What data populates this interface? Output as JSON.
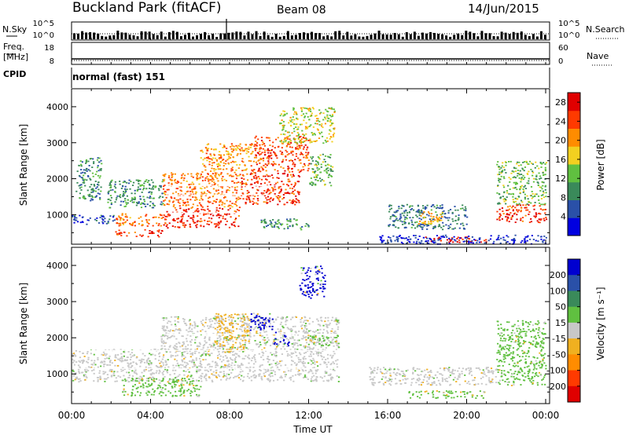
{
  "header": {
    "station": "Buckland Park (fitACF)",
    "beam": "Beam 08",
    "date": "14/Jun/2015"
  },
  "status_panels": {
    "nsky_label": "N.Sky",
    "nsearch_label": "N.Search",
    "freq_label_1": "Freq.",
    "freq_label_2": "[MHz]",
    "nave_label": "Nave",
    "cpid_label": "CPID",
    "cpid_value": "normal (fast) 151",
    "noise_ticks": [
      "10^5",
      "10^0"
    ],
    "freq_ticks": [
      "18",
      "8"
    ],
    "nave_ticks": [
      "60",
      "0"
    ]
  },
  "chart_data": [
    {
      "type": "heatmap",
      "panel": "power",
      "ylabel": "Slant Range [km]",
      "xlabel": "",
      "ylim": [
        180,
        4500
      ],
      "xlim": [
        0,
        24
      ],
      "x_ticks": [
        "00:00",
        "04:00",
        "08:00",
        "12:00",
        "16:00",
        "20:00",
        "00:00"
      ],
      "y_ticks": [
        1000,
        2000,
        3000,
        4000
      ],
      "colorbar": {
        "label": "Power [dB]",
        "ticks": [
          4,
          8,
          12,
          16,
          20,
          24,
          28
        ],
        "range": [
          0,
          30
        ],
        "colors": [
          "#0000e0",
          "#2a50a8",
          "#3a8a5a",
          "#60c040",
          "#f2d020",
          "#ff8c00",
          "#ff3a00",
          "#e00000"
        ]
      },
      "regions": [
        {
          "t": [
            0.0,
            2.2
          ],
          "r": [
            750,
            1000
          ],
          "level": 5
        },
        {
          "t": [
            0.2,
            1.5
          ],
          "r": [
            1400,
            2600
          ],
          "level": 9
        },
        {
          "t": [
            2.2,
            4.6
          ],
          "r": [
            400,
            600
          ],
          "level": 26
        },
        {
          "t": [
            2.2,
            4.6
          ],
          "r": [
            700,
            1050
          ],
          "level": 22
        },
        {
          "t": [
            1.8,
            4.6
          ],
          "r": [
            1200,
            2000
          ],
          "level": 10
        },
        {
          "t": [
            4.6,
            8.5
          ],
          "r": [
            650,
            1200
          ],
          "level": 26
        },
        {
          "t": [
            4.6,
            8.5
          ],
          "r": [
            1200,
            2200
          ],
          "level": 22
        },
        {
          "t": [
            6.5,
            9.2
          ],
          "r": [
            2200,
            3000
          ],
          "level": 20
        },
        {
          "t": [
            8.5,
            11.5
          ],
          "r": [
            1300,
            2200
          ],
          "level": 25
        },
        {
          "t": [
            9.2,
            12.0
          ],
          "r": [
            2200,
            3200
          ],
          "level": 24
        },
        {
          "t": [
            10.5,
            13.3
          ],
          "r": [
            3000,
            4000
          ],
          "level": 16
        },
        {
          "t": [
            12.0,
            13.2
          ],
          "r": [
            1800,
            2700
          ],
          "level": 12
        },
        {
          "t": [
            9.5,
            12.0
          ],
          "r": [
            600,
            900
          ],
          "level": 10
        },
        {
          "t": [
            16.0,
            20.0
          ],
          "r": [
            600,
            1300
          ],
          "level": 8
        },
        {
          "t": [
            17.5,
            19.0
          ],
          "r": [
            750,
            1100
          ],
          "level": 19
        },
        {
          "t": [
            17.8,
            21.0
          ],
          "r": [
            250,
            400
          ],
          "level": 27
        },
        {
          "t": [
            21.5,
            24.0
          ],
          "r": [
            800,
            1300
          ],
          "level": 25
        },
        {
          "t": [
            21.5,
            24.0
          ],
          "r": [
            1300,
            2500
          ],
          "level": 13
        },
        {
          "t": [
            15.5,
            24.0
          ],
          "r": [
            200,
            450
          ],
          "level": 3
        }
      ]
    },
    {
      "type": "heatmap",
      "panel": "velocity",
      "ylabel": "Slant Range [km]",
      "xlabel": "Time UT",
      "ylim": [
        180,
        4500
      ],
      "xlim": [
        0,
        24
      ],
      "x_ticks": [
        "00:00",
        "04:00",
        "08:00",
        "12:00",
        "16:00",
        "20:00",
        "00:00"
      ],
      "y_ticks": [
        1000,
        2000,
        3000,
        4000
      ],
      "colorbar": {
        "label": "Velocity [m s⁻¹]",
        "ticks": [
          200,
          100,
          50,
          15,
          -15,
          -50,
          -100,
          -200
        ],
        "colors": [
          "#0000d0",
          "#2a50a8",
          "#3a8a5a",
          "#60c040",
          "#c8c8c8",
          "#f0b020",
          "#ff8c00",
          "#ff3a00",
          "#e00000"
        ]
      },
      "regions": [
        {
          "t": [
            0.0,
            13.5
          ],
          "r": [
            800,
            1700
          ],
          "class": "gray"
        },
        {
          "t": [
            4.5,
            13.5
          ],
          "r": [
            1700,
            2600
          ],
          "class": "gray"
        },
        {
          "t": [
            7.2,
            9.0
          ],
          "r": [
            1600,
            2700
          ],
          "class": "orange"
        },
        {
          "t": [
            9.0,
            10.2
          ],
          "r": [
            2200,
            2700
          ],
          "class": "blue"
        },
        {
          "t": [
            10.2,
            11.0
          ],
          "r": [
            1800,
            2200
          ],
          "class": "blue"
        },
        {
          "t": [
            11.5,
            12.8
          ],
          "r": [
            3100,
            4000
          ],
          "class": "blue"
        },
        {
          "t": [
            2.5,
            6.5
          ],
          "r": [
            400,
            900
          ],
          "class": "green"
        },
        {
          "t": [
            12.0,
            13.5
          ],
          "r": [
            1800,
            2100
          ],
          "class": "green"
        },
        {
          "t": [
            15.0,
            21.5
          ],
          "r": [
            700,
            1200
          ],
          "class": "gray"
        },
        {
          "t": [
            17.0,
            21.0
          ],
          "r": [
            350,
            550
          ],
          "class": "green"
        },
        {
          "t": [
            21.5,
            24.0
          ],
          "r": [
            700,
            2500
          ],
          "class": "green"
        }
      ]
    }
  ]
}
